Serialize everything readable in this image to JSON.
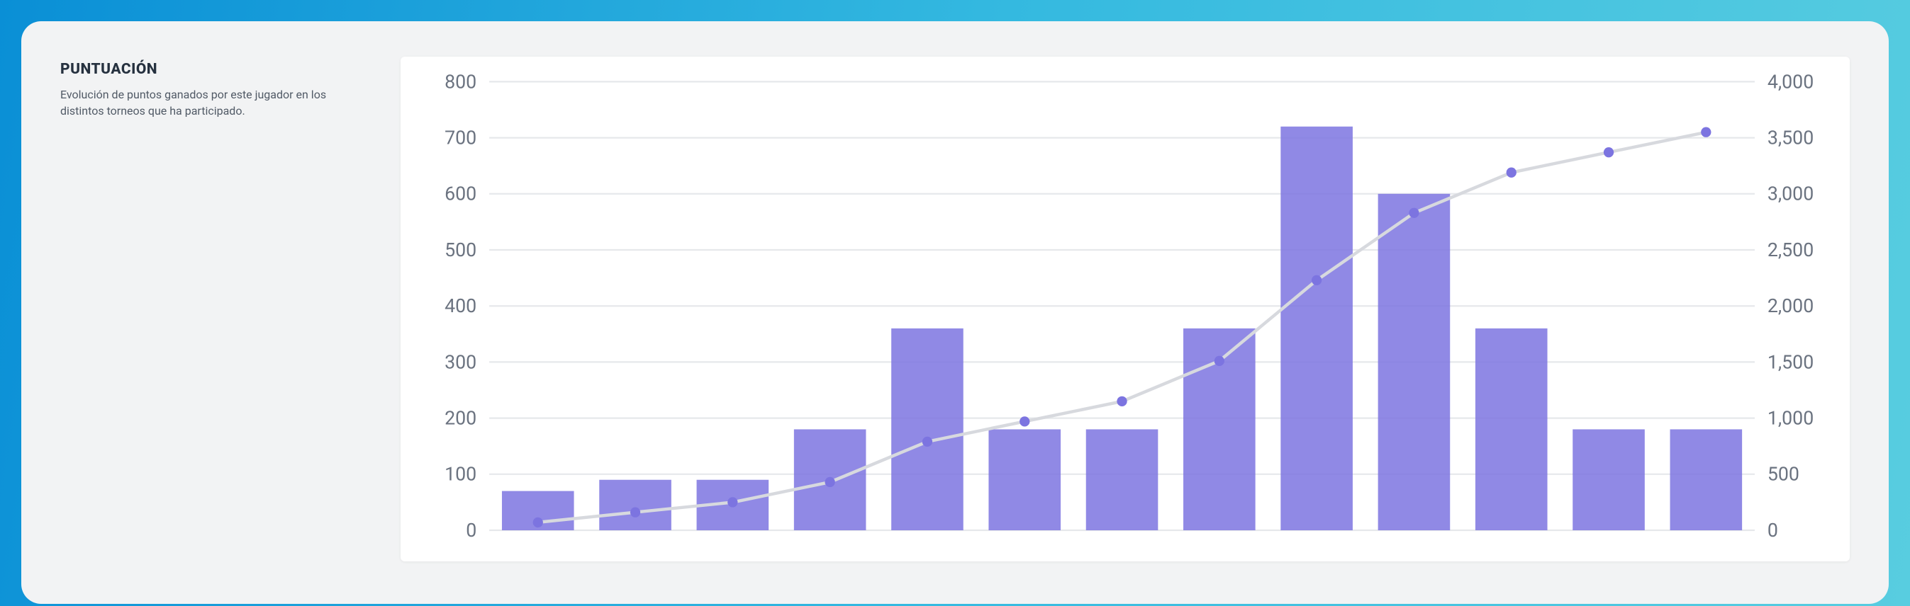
{
  "heading": {
    "title": "PUNTUACIÓN",
    "subtitle": "Evolución de puntos ganados por este jugador en los distintos torneos que ha participado."
  },
  "chart": {
    "type": "bar+line",
    "background_color": "#ffffff",
    "grid_color": "#e6e8eb",
    "axis_label_color": "#6b7380",
    "axis_label_fontsize": 12,
    "left_axis": {
      "min": 0,
      "max": 800,
      "step": 100,
      "ticks": [
        0,
        100,
        200,
        300,
        400,
        500,
        600,
        700,
        800
      ]
    },
    "right_axis": {
      "min": 0,
      "max": 4000,
      "step": 500,
      "ticks": [
        "0",
        "500",
        "1,000",
        "1,500",
        "2,000",
        "2,500",
        "3,000",
        "3,500",
        "4,000"
      ]
    },
    "bars": {
      "color": "#7c74e0",
      "opacity": 0.85,
      "width_ratio": 0.74,
      "values": [
        70,
        90,
        90,
        180,
        360,
        180,
        180,
        360,
        720,
        600,
        360,
        180,
        180
      ]
    },
    "line": {
      "color": "#d7d9de",
      "marker_color": "#7c74e0",
      "marker_radius": 3.2,
      "values": [
        70,
        160,
        250,
        430,
        790,
        970,
        1150,
        1510,
        2230,
        2830,
        3190,
        3370,
        3550
      ]
    }
  }
}
